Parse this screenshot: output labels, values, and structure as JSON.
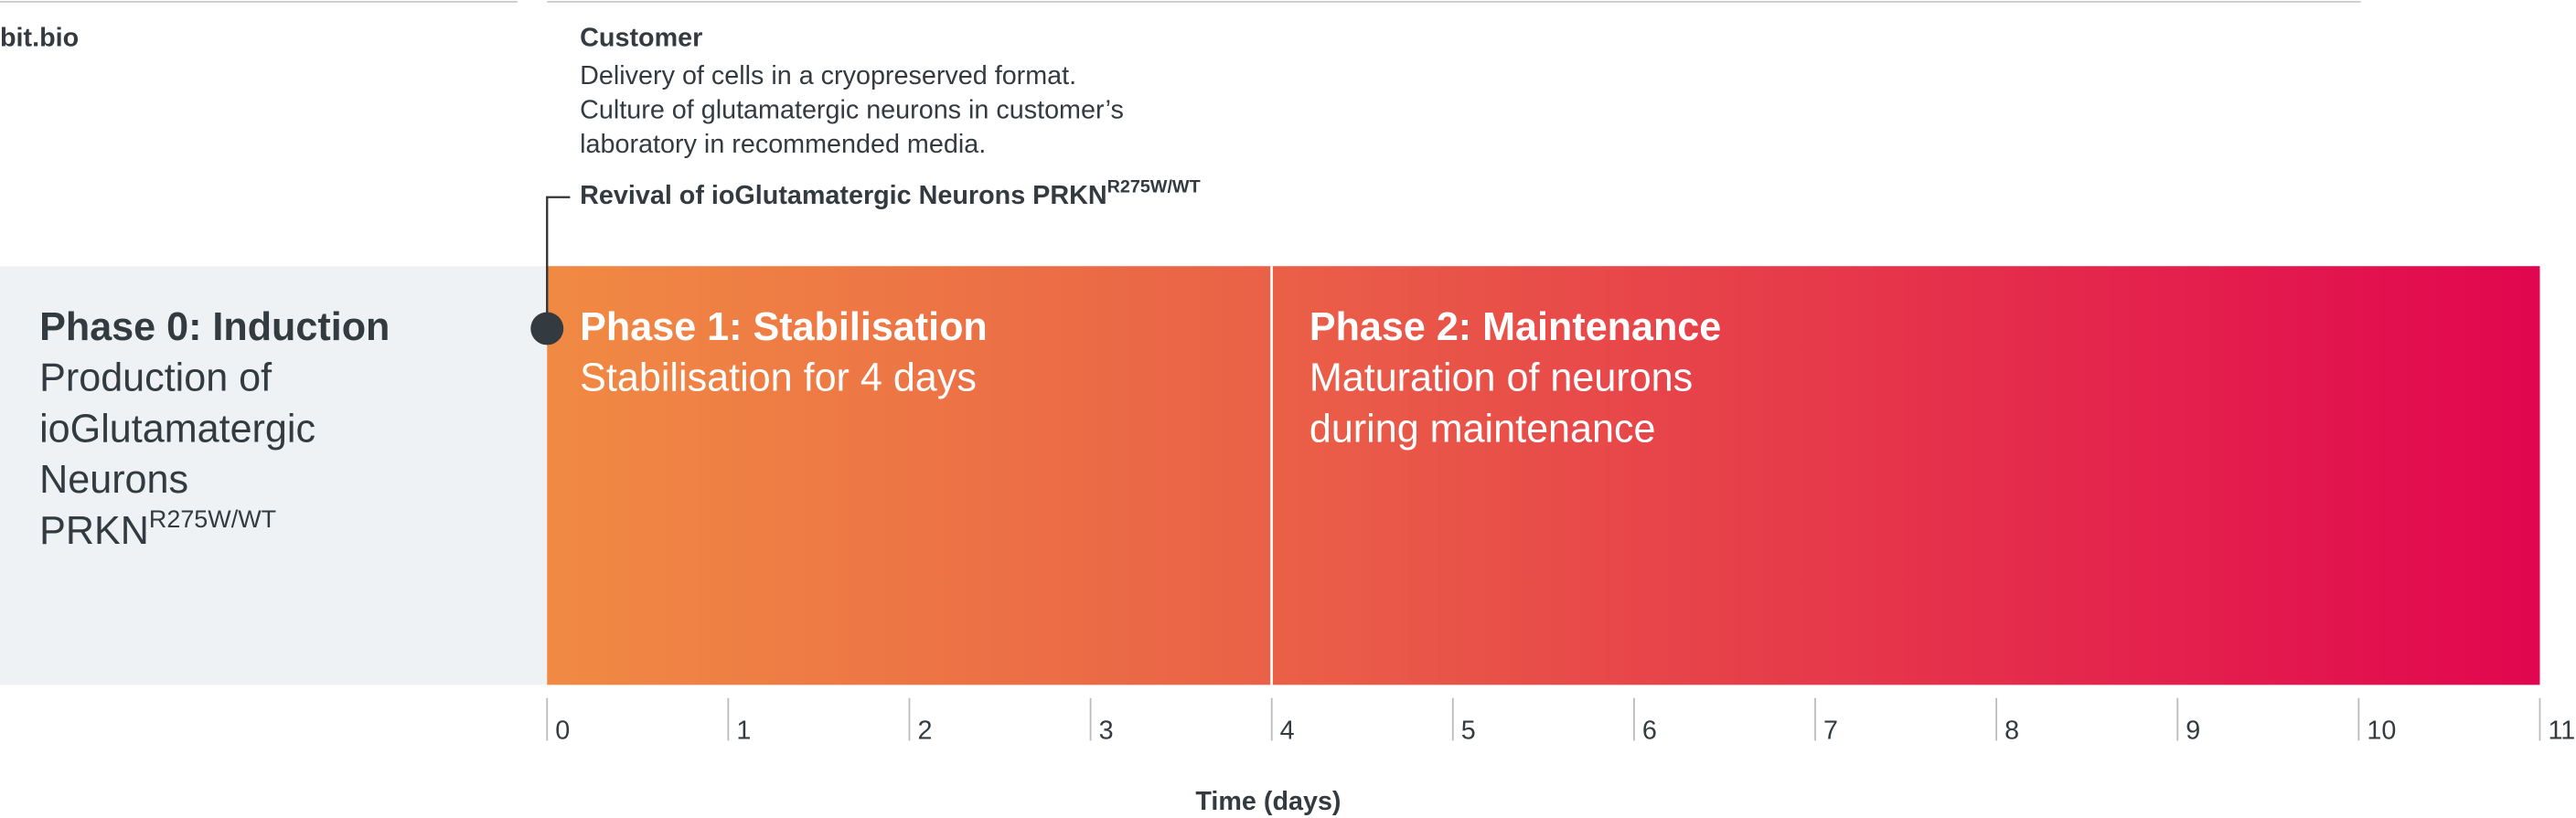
{
  "header": {
    "left": "bit.bio",
    "customer_title": "Customer",
    "customer_lines": [
      "Delivery of cells in a cryopreserved format.",
      "Culture of glutamatergic neurons in customer’s",
      "laboratory in recommended media."
    ]
  },
  "revival": {
    "label": "Revival of ioGlutamatergic Neurons PRKN",
    "superscript": "R275W/WT"
  },
  "phases": [
    {
      "title": "Phase 0: Induction",
      "lines": [
        "Production of",
        "ioGlutamatergic",
        "Neurons",
        "PRKN"
      ],
      "superscript": "R275W/WT"
    },
    {
      "title": "Phase 1: Stabilisation",
      "lines": [
        "Stabilisation for 4 days"
      ]
    },
    {
      "title": "Phase 2: Maintenance",
      "lines": [
        "Maturation of neurons",
        "during maintenance"
      ]
    }
  ],
  "axis": {
    "ticks": [
      0,
      1,
      2,
      3,
      4,
      5,
      6,
      7,
      8,
      9,
      10,
      11
    ],
    "title": "Time (days)"
  }
}
